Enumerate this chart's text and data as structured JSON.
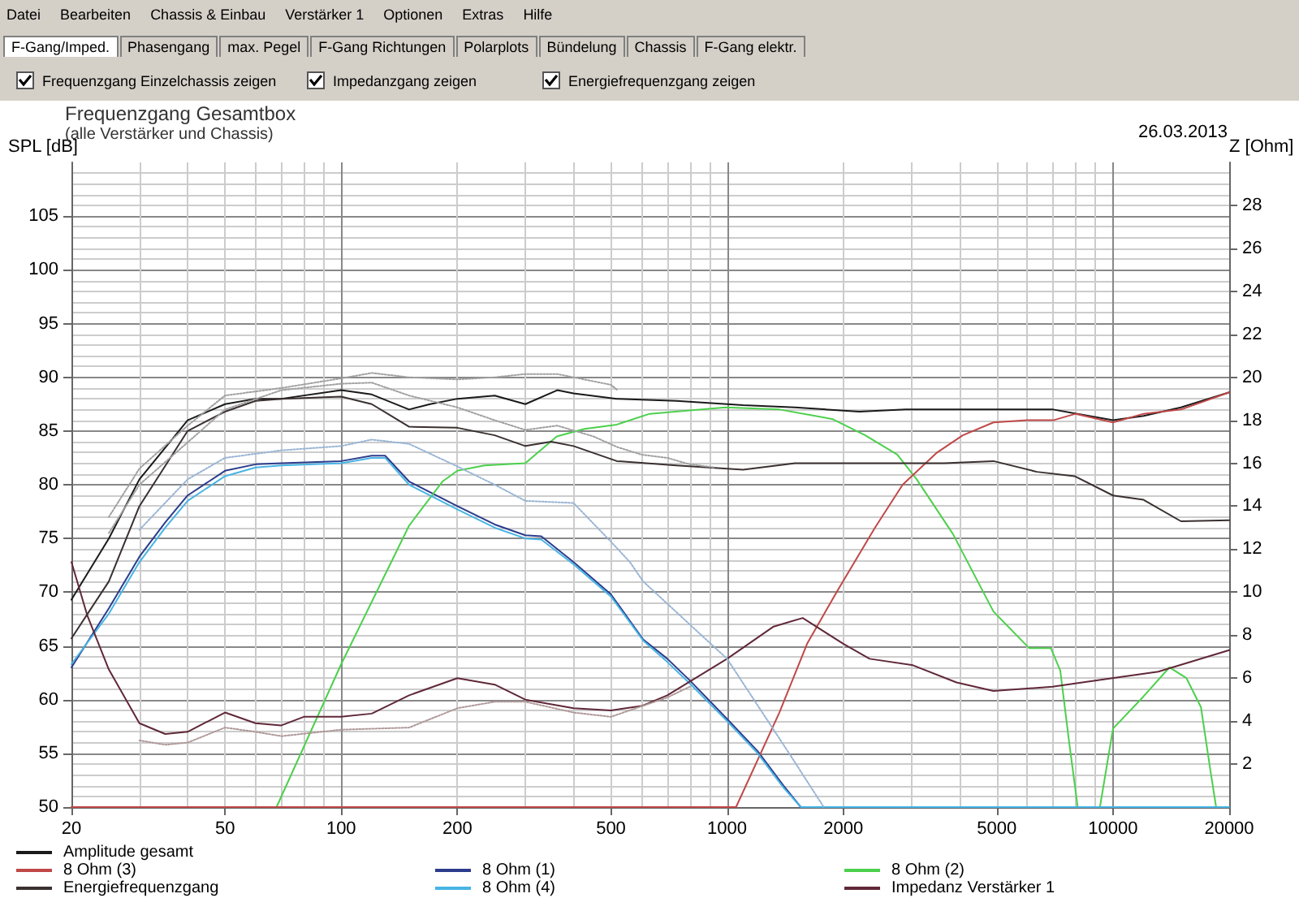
{
  "chart_data": {
    "type": "line",
    "title": "Frequenzgang Gesamtbox",
    "subtitle": "(alle Verstärker und Chassis)",
    "ylabel": "SPL [dB]",
    "y2label": "Z [Ohm]",
    "annotations": [
      "Datei",
      "Bearbeiten",
      "Chassis & Einbau",
      "Verstärker 1",
      "Optionen",
      "Extras",
      "Hilfe",
      "F-Gang/Imped.",
      "Phasengang",
      "max. Pegel",
      "F-Gang Richtungen",
      "Polarplots",
      "Bündelung",
      "Chassis",
      "F-Gang elektr.",
      "Frequenzgang Einzelchassis zeigen",
      "Impedanzgang zeigen",
      "Energiefrequenzgang zeigen",
      "26.03.2013"
    ],
    "xlim": [
      20,
      20000
    ],
    "xticks": [
      20,
      50,
      100,
      200,
      500,
      1000,
      2000,
      5000,
      10000,
      20000
    ],
    "log": "x",
    "ylim": [
      50,
      110
    ],
    "yticks": [
      50,
      55,
      60,
      65,
      70,
      75,
      80,
      85,
      90,
      95,
      100,
      105
    ],
    "y2lim": [
      0,
      30
    ],
    "y2ticks": [
      2,
      4,
      6,
      8,
      10,
      12,
      14,
      16,
      18,
      20,
      22,
      24,
      26,
      28
    ],
    "grid": true,
    "legend": "bottom",
    "marker": "none",
    "line_style": "solid",
    "series": [
      {
        "name": "Amplitude gesamt",
        "color": "#1a1a1a",
        "x": [
          20,
          25,
          30,
          40,
          50,
          60,
          70,
          100,
          120,
          150,
          170,
          200,
          250,
          300,
          363,
          400,
          518,
          740,
          1100,
          1500,
          2200,
          2900,
          3650,
          5100,
          7000,
          10000,
          12000,
          15000,
          20000
        ],
        "values": [
          69.3,
          75,
          80.5,
          86,
          87.5,
          88,
          88,
          88.8,
          88.4,
          87,
          87.5,
          88,
          88.3,
          87.5,
          88.8,
          88.5,
          88,
          87.8,
          87.4,
          87.2,
          86.8,
          87,
          87,
          87,
          87,
          86,
          86.4,
          87.2,
          88.6
        ]
      },
      {
        "name": "8 Ohm (1)",
        "color": "#2c3c8c",
        "x": [
          20,
          25,
          30,
          35,
          40,
          50,
          60,
          70,
          100,
          120,
          130,
          150,
          200,
          250,
          300,
          330,
          400,
          500,
          606,
          700,
          800,
          1000,
          1200,
          1400,
          1552,
          20000
        ],
        "values": [
          63,
          68.5,
          73.3,
          76.5,
          79,
          81.3,
          81.9,
          82,
          82.2,
          82.7,
          82.7,
          80.3,
          78,
          76.3,
          75.3,
          75.2,
          72.8,
          69.8,
          65.6,
          63.8,
          61.8,
          58.2,
          55.2,
          52,
          50,
          50
        ]
      },
      {
        "name": "8 Ohm (2)",
        "color": "#4cd04c",
        "x": [
          20,
          68,
          100,
          150,
          183,
          200,
          235,
          300,
          362,
          427,
          518,
          630,
          990,
          1370,
          1880,
          2280,
          2760,
          3100,
          3850,
          4900,
          6060,
          6900,
          7300,
          7700,
          8100,
          9250,
          10000,
          12000,
          14000,
          15500,
          16900,
          17900,
          18500
        ],
        "values": [
          50,
          50,
          63.3,
          76.2,
          80.3,
          81.3,
          81.8,
          82,
          84.5,
          85.2,
          85.6,
          86.6,
          87.2,
          87,
          86.1,
          84.6,
          82.8,
          80.5,
          75.4,
          68.2,
          64.8,
          64.8,
          62.7,
          56,
          50,
          50,
          57.3,
          60.3,
          63,
          62,
          59.3,
          53.3,
          50
        ]
      },
      {
        "name": "8 Ohm (3)",
        "color": "#c04848",
        "x": [
          20,
          1055,
          1366,
          1612,
          1936,
          2416,
          2850,
          3500,
          4080,
          4900,
          6000,
          7000,
          8000,
          10000,
          12000,
          15000,
          20000
        ],
        "values": [
          50,
          50,
          58.8,
          65.2,
          70.2,
          76,
          80,
          83,
          84.6,
          85.8,
          86,
          86,
          86.6,
          85.8,
          86.6,
          87,
          88.6
        ]
      },
      {
        "name": "8 Ohm (4)",
        "color": "#48b4e4",
        "x": [
          20,
          25,
          30,
          35,
          40,
          50,
          60,
          70,
          100,
          120,
          130,
          150,
          200,
          250,
          300,
          330,
          400,
          500,
          606,
          700,
          800,
          1000,
          1200,
          1400,
          1552,
          20000
        ],
        "values": [
          63.3,
          68,
          72.8,
          76,
          78.5,
          80.8,
          81.6,
          81.8,
          82,
          82.5,
          82.5,
          80,
          77.7,
          76,
          75,
          74.9,
          72.6,
          69.6,
          65.5,
          63.5,
          61.5,
          58,
          55,
          51.8,
          50,
          50
        ]
      },
      {
        "name": "Impedanz Verstärker 1",
        "color": "#602838",
        "axis": "y2",
        "x": [
          20,
          22,
          25,
          30,
          35,
          40,
          50,
          60,
          70,
          80,
          100,
          120,
          150,
          200,
          250,
          300,
          400,
          500,
          600,
          700,
          1000,
          1320,
          1570,
          2000,
          2340,
          3030,
          3930,
          4900,
          6970,
          9950,
          13100,
          20000
        ],
        "values": [
          11.4,
          8.9,
          6.4,
          3.9,
          3.4,
          3.5,
          4.4,
          3.9,
          3.8,
          4.2,
          4.2,
          4.35,
          5.2,
          6.0,
          5.7,
          5.0,
          4.6,
          4.5,
          4.7,
          5.2,
          6.9,
          8.4,
          8.8,
          7.6,
          6.9,
          6.6,
          5.8,
          5.4,
          5.6,
          6.0,
          6.3,
          7.3
        ]
      },
      {
        "name": "Energiefrequenzgang",
        "color": "#3a3030",
        "x": [
          20,
          25,
          30,
          40,
          50,
          60,
          70,
          100,
          120,
          150,
          200,
          250,
          300,
          350,
          400,
          518,
          740,
          1100,
          1500,
          2200,
          2900,
          3650,
          4900,
          6350,
          7950,
          10000,
          12000,
          15000,
          20000
        ],
        "values": [
          65.7,
          71,
          78,
          85,
          86.8,
          87.8,
          88,
          88.2,
          87.5,
          85.4,
          85.3,
          84.6,
          83.6,
          84,
          83.6,
          82.2,
          81.8,
          81.4,
          82,
          82,
          82,
          82,
          82.2,
          81.2,
          80.8,
          79,
          78.6,
          76.6,
          76.7
        ]
      },
      {
        "color": "#a0a0a0",
        "line_style": "dotted",
        "x": [
          25,
          30,
          40,
          50,
          70,
          100,
          120,
          150,
          200,
          250,
          300,
          363,
          500,
          520
        ],
        "values": [
          77,
          81.5,
          85.5,
          88.3,
          89,
          89.9,
          90.4,
          90,
          89.8,
          90,
          90.3,
          90.3,
          89.3,
          88.8
        ]
      },
      {
        "color": "#a0a0a0",
        "line_style": "dotted",
        "x": [
          25,
          30,
          50,
          70,
          100,
          120,
          150,
          200,
          250,
          300,
          363,
          450,
          520,
          600,
          700,
          800,
          930
        ],
        "values": [
          75.5,
          80,
          87,
          88.8,
          89.4,
          89.5,
          88.3,
          87.2,
          86,
          85.1,
          85.5,
          84.5,
          83.5,
          82.8,
          82.5,
          81.9,
          81.6
        ]
      },
      {
        "color": "#98b4d4",
        "line_style": "dotted",
        "x": [
          30,
          40,
          50,
          70,
          100,
          120,
          150,
          200,
          250,
          300,
          400,
          500,
          560,
          606,
          800,
          1000,
          1460,
          1780
        ],
        "values": [
          75.8,
          80.5,
          82.5,
          83.2,
          83.6,
          84.2,
          83.8,
          81.7,
          80,
          78.5,
          78.3,
          74.7,
          72.8,
          71,
          67,
          63.8,
          54.8,
          50
        ]
      },
      {
        "color": "#b09898",
        "line_style": "dotted",
        "axis": "y2",
        "x": [
          30,
          35,
          40,
          50,
          60,
          70,
          100,
          150,
          200,
          250,
          300,
          400,
          500,
          700,
          800
        ],
        "values": [
          3.1,
          2.9,
          3.0,
          3.7,
          3.5,
          3.3,
          3.6,
          3.7,
          4.6,
          4.9,
          4.9,
          4.4,
          4.2,
          5.1,
          5.6
        ]
      }
    ]
  }
}
